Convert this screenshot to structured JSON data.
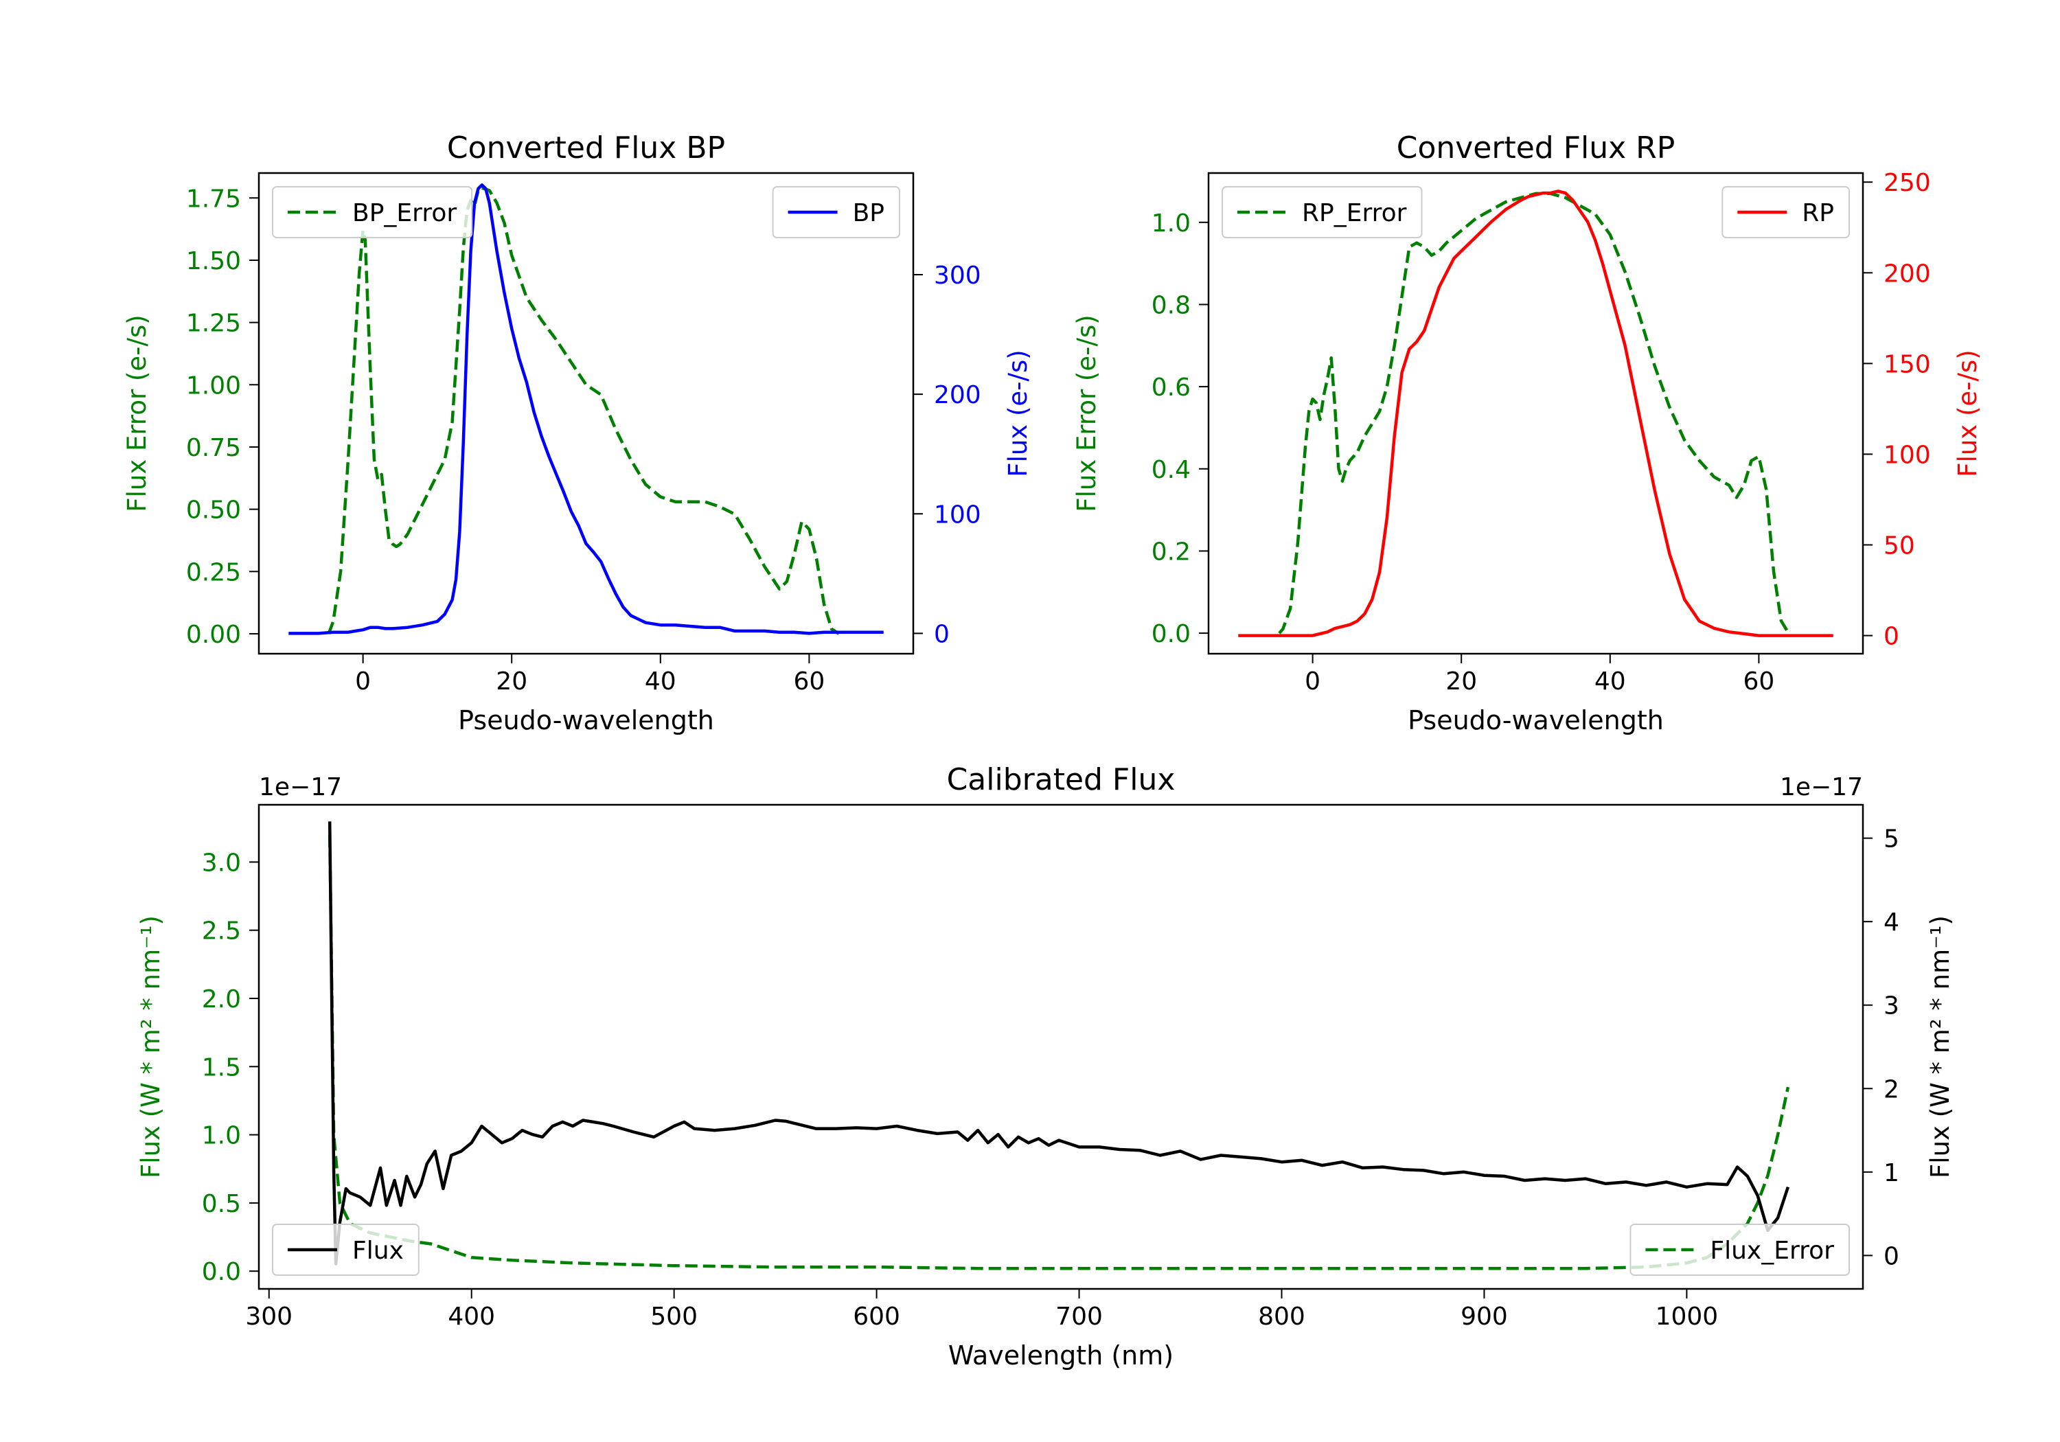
{
  "colors": {
    "bp": "#0000ff",
    "rp": "#ff0000",
    "error": "#008000",
    "flux": "#000000",
    "axis": "#000000"
  },
  "chart_data": [
    {
      "id": "bp",
      "type": "line",
      "title": "Converted Flux BP",
      "xlabel": "Pseudo-wavelength",
      "ylabel_left": "Flux Error (e-/s)",
      "ylabel_right": "Flux (e-/s)",
      "xlim": [
        -14,
        74
      ],
      "ylim_left": [
        -0.08,
        1.85
      ],
      "ylim_right": [
        -17,
        385
      ],
      "xticks": [
        0,
        20,
        40,
        60
      ],
      "yticks_left": [
        0.0,
        0.25,
        0.5,
        0.75,
        1.0,
        1.25,
        1.5,
        1.75
      ],
      "yticks_left_labels": [
        "0.00",
        "0.25",
        "0.50",
        "0.75",
        "1.00",
        "1.25",
        "1.50",
        "1.75"
      ],
      "yticks_right": [
        0,
        100,
        200,
        300
      ],
      "legend_left": "BP_Error",
      "legend_right": "BP",
      "series": [
        {
          "name": "BP_Error",
          "axis": "left",
          "style": "dashed",
          "color_key": "error",
          "x": [
            -4.6,
            -4,
            -3,
            -2,
            -1,
            -0.5,
            0,
            0.3,
            0.6,
            1,
            1.5,
            2,
            2.5,
            3,
            3.5,
            4,
            4.5,
            5,
            6,
            7,
            8,
            9,
            10,
            11,
            12,
            13,
            13.5,
            14,
            14.5,
            15,
            15.5,
            16,
            17,
            18,
            19,
            20,
            22,
            24,
            26,
            28,
            30,
            32,
            34,
            36,
            38,
            40,
            42,
            44,
            46,
            48,
            50,
            52,
            54,
            56,
            57,
            58,
            59,
            60,
            61,
            62,
            63,
            64
          ],
          "values": [
            0.0,
            0.05,
            0.25,
            0.7,
            1.2,
            1.45,
            1.62,
            1.58,
            1.35,
            1.05,
            0.7,
            0.62,
            0.64,
            0.5,
            0.38,
            0.36,
            0.35,
            0.36,
            0.4,
            0.46,
            0.52,
            0.58,
            0.64,
            0.7,
            0.85,
            1.3,
            1.55,
            1.7,
            1.74,
            1.72,
            1.78,
            1.79,
            1.78,
            1.73,
            1.65,
            1.52,
            1.35,
            1.26,
            1.18,
            1.09,
            1.0,
            0.96,
            0.82,
            0.7,
            0.6,
            0.55,
            0.53,
            0.53,
            0.53,
            0.51,
            0.48,
            0.38,
            0.27,
            0.18,
            0.21,
            0.32,
            0.45,
            0.42,
            0.3,
            0.12,
            0.02,
            0.0
          ]
        },
        {
          "name": "BP",
          "axis": "right",
          "style": "solid",
          "color_key": "bp",
          "x": [
            -10,
            -8,
            -6,
            -4,
            -2,
            -1,
            0,
            1,
            2,
            3,
            4,
            6,
            8,
            10,
            11,
            12,
            12.5,
            13,
            13.5,
            14,
            14.5,
            15,
            15.5,
            16,
            16.5,
            17,
            17.5,
            18,
            19,
            20,
            21,
            22,
            23,
            24,
            25,
            26,
            27,
            28,
            29,
            30,
            31,
            32,
            33,
            34,
            35,
            36,
            37,
            38,
            40,
            42,
            44,
            46,
            48,
            50,
            52,
            54,
            56,
            58,
            60,
            62,
            64,
            66,
            68,
            70
          ],
          "values": [
            0,
            0,
            0,
            1,
            1,
            2,
            3,
            5,
            5,
            4,
            4,
            5,
            7,
            10,
            16,
            28,
            45,
            85,
            160,
            250,
            320,
            360,
            372,
            375,
            372,
            360,
            340,
            320,
            285,
            255,
            230,
            210,
            185,
            165,
            148,
            133,
            118,
            102,
            90,
            75,
            68,
            60,
            46,
            33,
            22,
            15,
            12,
            9,
            7,
            7,
            6,
            5,
            5,
            2,
            2,
            2,
            1,
            1,
            0,
            1,
            1,
            1,
            1,
            1
          ]
        }
      ]
    },
    {
      "id": "rp",
      "type": "line",
      "title": "Converted Flux RP",
      "xlabel": "Pseudo-wavelength",
      "ylabel_left": "Flux Error (e-/s)",
      "ylabel_right": "Flux (e-/s)",
      "xlim": [
        -14,
        74
      ],
      "ylim_left": [
        -0.05,
        1.12
      ],
      "ylim_right": [
        -10,
        255
      ],
      "xticks": [
        0,
        20,
        40,
        60
      ],
      "yticks_left": [
        0.0,
        0.2,
        0.4,
        0.6,
        0.8,
        1.0
      ],
      "yticks_left_labels": [
        "0.0",
        "0.2",
        "0.4",
        "0.6",
        "0.8",
        "1.0"
      ],
      "yticks_right": [
        0,
        50,
        100,
        150,
        200,
        250
      ],
      "legend_left": "RP_Error",
      "legend_right": "RP",
      "series": [
        {
          "name": "RP_Error",
          "axis": "left",
          "style": "dashed",
          "color_key": "error",
          "x": [
            -4.5,
            -4,
            -3,
            -2,
            -1,
            -0.5,
            0,
            0.5,
            1,
            1.5,
            2,
            2.5,
            3,
            3.5,
            4,
            4.5,
            5,
            6,
            7,
            8,
            9,
            10,
            11,
            12,
            13,
            14,
            15,
            16,
            17,
            18,
            20,
            22,
            24,
            26,
            28,
            30,
            32,
            34,
            36,
            38,
            40,
            42,
            44,
            46,
            48,
            50,
            52,
            54,
            55,
            56,
            57,
            58,
            59,
            60,
            61,
            62,
            63,
            64
          ],
          "values": [
            0.0,
            0.01,
            0.06,
            0.22,
            0.45,
            0.54,
            0.57,
            0.56,
            0.52,
            0.58,
            0.62,
            0.67,
            0.55,
            0.4,
            0.37,
            0.4,
            0.42,
            0.44,
            0.48,
            0.51,
            0.54,
            0.6,
            0.7,
            0.82,
            0.94,
            0.95,
            0.94,
            0.92,
            0.93,
            0.95,
            0.98,
            1.01,
            1.03,
            1.05,
            1.06,
            1.07,
            1.07,
            1.06,
            1.04,
            1.02,
            0.97,
            0.88,
            0.77,
            0.65,
            0.55,
            0.47,
            0.42,
            0.38,
            0.37,
            0.36,
            0.33,
            0.36,
            0.42,
            0.43,
            0.35,
            0.15,
            0.03,
            0.0
          ]
        },
        {
          "name": "RP",
          "axis": "right",
          "style": "solid",
          "color_key": "rp",
          "x": [
            -10,
            -6,
            -2,
            0,
            1,
            2,
            3,
            4,
            5,
            6,
            7,
            8,
            9,
            10,
            11,
            12,
            13,
            14,
            15,
            16,
            17,
            18,
            19,
            20,
            22,
            24,
            26,
            28,
            29,
            30,
            31,
            32,
            33,
            34,
            35,
            36,
            37,
            38,
            39,
            40,
            42,
            44,
            46,
            48,
            50,
            52,
            54,
            56,
            58,
            60,
            62,
            64,
            66,
            68,
            70
          ],
          "values": [
            0,
            0,
            0,
            0,
            1,
            2,
            4,
            5,
            6,
            8,
            12,
            20,
            35,
            65,
            110,
            145,
            158,
            162,
            168,
            180,
            192,
            200,
            208,
            212,
            220,
            228,
            235,
            240,
            242,
            243,
            244,
            244,
            245,
            244,
            240,
            234,
            228,
            218,
            205,
            190,
            160,
            120,
            80,
            45,
            20,
            8,
            4,
            2,
            1,
            0,
            0,
            0,
            0,
            0,
            0
          ]
        }
      ]
    },
    {
      "id": "calibrated",
      "type": "line",
      "title": "Calibrated Flux",
      "xlabel": "Wavelength (nm)",
      "ylabel_left": "Flux (W * m² * nm⁻¹)",
      "ylabel_right": "Flux (W * m² * nm⁻¹)",
      "offset_left": "1e−17",
      "offset_right": "1e−17",
      "xlim": [
        295,
        1087
      ],
      "ylim_left": [
        -0.13,
        3.42
      ],
      "ylim_right": [
        -0.4,
        5.4
      ],
      "xticks": [
        300,
        400,
        500,
        600,
        700,
        800,
        900,
        1000
      ],
      "yticks_left": [
        0.0,
        0.5,
        1.0,
        1.5,
        2.0,
        2.5,
        3.0
      ],
      "yticks_left_labels": [
        "0.0",
        "0.5",
        "1.0",
        "1.5",
        "2.0",
        "2.5",
        "3.0"
      ],
      "yticks_right": [
        0,
        1,
        2,
        3,
        4,
        5
      ],
      "legend_left": "Flux",
      "legend_right": "Flux_Error",
      "series": [
        {
          "name": "Flux_Error",
          "axis": "left",
          "style": "dashed",
          "color_key": "error",
          "x": [
            330,
            332,
            335,
            340,
            350,
            360,
            370,
            380,
            390,
            400,
            420,
            450,
            500,
            550,
            600,
            650,
            700,
            750,
            800,
            850,
            900,
            950,
            980,
            1000,
            1010,
            1020,
            1030,
            1035,
            1040,
            1045,
            1050
          ],
          "values": [
            3.2,
            1.0,
            0.5,
            0.35,
            0.28,
            0.25,
            0.22,
            0.2,
            0.15,
            0.1,
            0.08,
            0.06,
            0.04,
            0.03,
            0.03,
            0.02,
            0.02,
            0.02,
            0.02,
            0.02,
            0.02,
            0.02,
            0.03,
            0.06,
            0.1,
            0.2,
            0.35,
            0.5,
            0.7,
            1.0,
            1.35
          ]
        },
        {
          "name": "Flux",
          "axis": "right",
          "style": "solid",
          "color_key": "flux",
          "x": [
            330,
            331,
            332,
            333,
            335,
            338,
            340,
            345,
            350,
            355,
            358,
            362,
            365,
            368,
            372,
            375,
            378,
            382,
            386,
            390,
            395,
            400,
            405,
            410,
            415,
            420,
            425,
            430,
            435,
            440,
            445,
            450,
            455,
            460,
            465,
            470,
            480,
            490,
            500,
            505,
            510,
            520,
            530,
            540,
            550,
            555,
            560,
            570,
            580,
            590,
            600,
            610,
            620,
            630,
            640,
            645,
            650,
            655,
            660,
            665,
            670,
            675,
            680,
            685,
            690,
            700,
            710,
            720,
            730,
            740,
            750,
            760,
            770,
            780,
            790,
            800,
            810,
            820,
            830,
            840,
            850,
            860,
            870,
            880,
            890,
            900,
            910,
            920,
            930,
            940,
            950,
            960,
            970,
            980,
            990,
            1000,
            1010,
            1020,
            1025,
            1030,
            1035,
            1040,
            1045,
            1050
          ],
          "values": [
            5.2,
            3.0,
            1.0,
            -0.1,
            0.4,
            0.8,
            0.75,
            0.7,
            0.6,
            1.05,
            0.6,
            0.9,
            0.6,
            0.95,
            0.7,
            0.85,
            1.1,
            1.25,
            0.8,
            1.2,
            1.25,
            1.35,
            1.55,
            1.45,
            1.35,
            1.4,
            1.5,
            1.45,
            1.42,
            1.55,
            1.6,
            1.55,
            1.62,
            1.6,
            1.58,
            1.55,
            1.48,
            1.42,
            1.55,
            1.6,
            1.52,
            1.5,
            1.52,
            1.56,
            1.62,
            1.61,
            1.58,
            1.52,
            1.52,
            1.53,
            1.52,
            1.55,
            1.5,
            1.46,
            1.48,
            1.38,
            1.5,
            1.35,
            1.45,
            1.3,
            1.42,
            1.35,
            1.4,
            1.32,
            1.38,
            1.3,
            1.3,
            1.27,
            1.26,
            1.2,
            1.25,
            1.15,
            1.2,
            1.18,
            1.16,
            1.12,
            1.14,
            1.08,
            1.12,
            1.05,
            1.06,
            1.03,
            1.02,
            0.98,
            1.0,
            0.96,
            0.95,
            0.9,
            0.92,
            0.9,
            0.92,
            0.86,
            0.88,
            0.84,
            0.88,
            0.82,
            0.86,
            0.85,
            1.06,
            0.95,
            0.72,
            0.3,
            0.45,
            0.82
          ]
        }
      ]
    }
  ]
}
